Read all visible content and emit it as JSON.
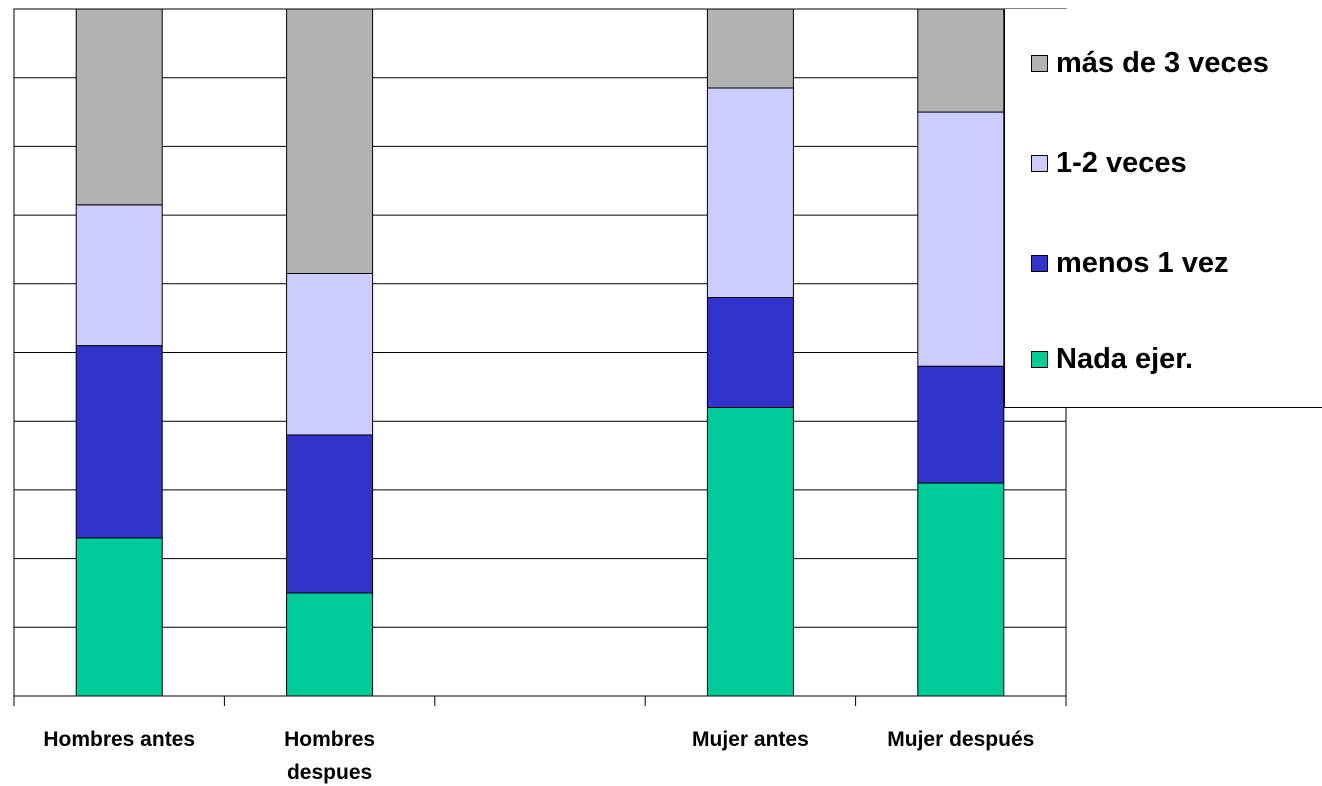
{
  "chart_data": {
    "type": "bar",
    "stacked": true,
    "normalized_percent": true,
    "categories": [
      "Hombres antes",
      "Hombres\ndespues",
      "",
      "Mujer antes",
      "Mujer después"
    ],
    "series": [
      {
        "name": "Nada ejer.",
        "color": "#00cc99",
        "values": [
          23,
          15,
          null,
          42,
          31
        ]
      },
      {
        "name": "menos 1 vez",
        "color": "#3333cc",
        "values": [
          28,
          23,
          null,
          16,
          17
        ]
      },
      {
        "name": "1-2 veces",
        "color": "#ccccff",
        "values": [
          20.5,
          23.5,
          null,
          30.5,
          37
        ]
      },
      {
        "name": "más de 3 veces",
        "color": "#b2b2b2",
        "values": [
          28.5,
          38.5,
          null,
          11.5,
          15
        ]
      }
    ],
    "ylim": [
      0,
      100
    ],
    "grid": true,
    "legend_position": "top-right",
    "legend_order": [
      "más de 3 veces",
      "1-2 veces",
      "menos 1 vez",
      "Nada ejer."
    ]
  }
}
